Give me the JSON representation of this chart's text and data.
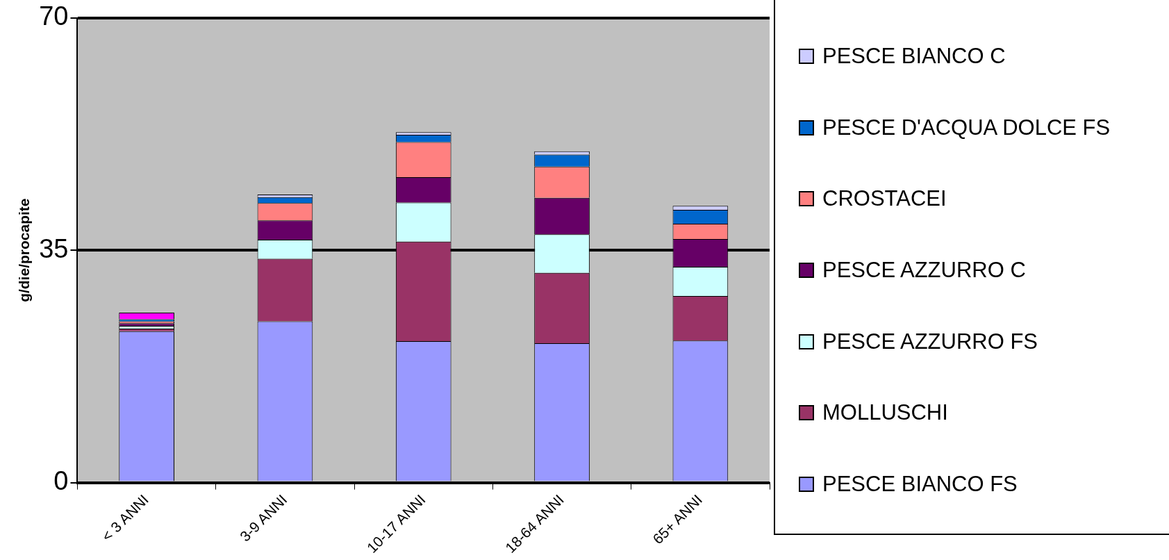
{
  "chart_data": {
    "type": "bar",
    "stacked": true,
    "ylabel": "g/die/procapite",
    "categories": [
      "< 3 ANNI",
      "3-9 ANNI",
      "10-17 ANNI",
      "18-64 ANNI",
      "65+ ANNI"
    ],
    "ylim": [
      0,
      70
    ],
    "yticks": [
      0,
      35,
      70
    ],
    "grid": "y",
    "legend": "right",
    "series": [
      {
        "name": "PESCE BIANCO FS",
        "color": "#9999ff",
        "values": [
          22.8,
          24.3,
          21.3,
          21.0,
          21.4
        ]
      },
      {
        "name": "MOLLUSCHI",
        "color": "#993366",
        "values": [
          0.4,
          9.4,
          15.0,
          10.6,
          6.7
        ]
      },
      {
        "name": "PESCE AZZURRO FS",
        "color": "#ccffff",
        "values": [
          0.4,
          2.9,
          5.9,
          5.8,
          4.4
        ]
      },
      {
        "name": "PESCE AZZURRO C",
        "color": "#660066",
        "values": [
          0.4,
          2.9,
          3.8,
          5.5,
          4.2
        ]
      },
      {
        "name": "CROSTACEI",
        "color": "#ff8080",
        "values": [
          0.3,
          2.6,
          5.3,
          4.7,
          2.3
        ]
      },
      {
        "name": "PESCE D'ACQUA DOLCE FS",
        "color": "#0066cc",
        "values": [
          0.3,
          0.9,
          1.1,
          1.8,
          2.1
        ]
      },
      {
        "name": "PESCE BIANCO C",
        "color": "#ccccff",
        "values": [
          0,
          0.4,
          0.4,
          0.5,
          0.6
        ]
      },
      {
        "color": "#ff00ff",
        "values": [
          1.0,
          0,
          0,
          0,
          0
        ]
      }
    ]
  }
}
